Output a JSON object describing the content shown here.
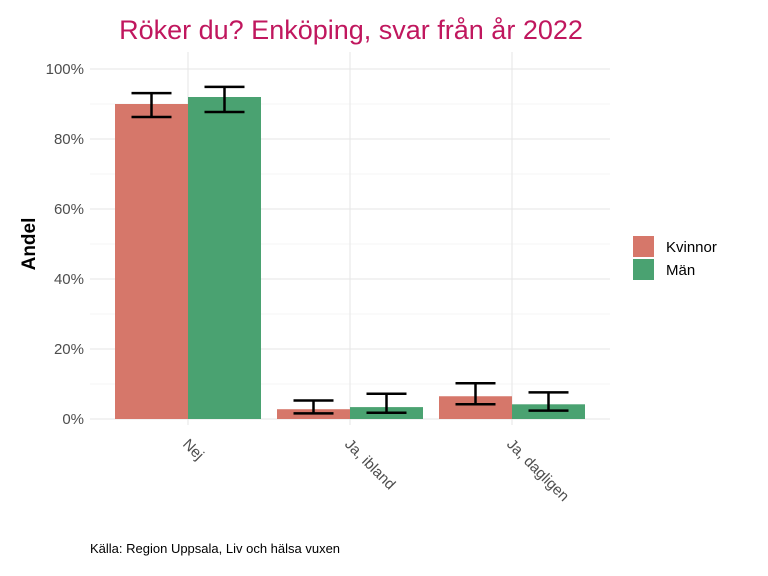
{
  "chart_data": {
    "type": "bar",
    "title": "Röker du? Enköping, svar från år 2022",
    "ylabel": "Andel",
    "xlabel": "",
    "caption": "Källa: Region Uppsala, Liv och hälsa vuxen",
    "categories": [
      "Nej",
      "Ja, ibland",
      "Ja, dagligen"
    ],
    "ylim": [
      0,
      100
    ],
    "yticks": [
      "0%",
      "20%",
      "40%",
      "60%",
      "80%",
      "100%"
    ],
    "grid": true,
    "legend_position": "right",
    "series": [
      {
        "name": "Kvinnor",
        "color": "#D6776A",
        "values": [
          90,
          2.8,
          6.5
        ],
        "err_low": [
          86.3,
          1.6,
          4.2
        ],
        "err_high": [
          93.1,
          5.3,
          10.2
        ]
      },
      {
        "name": "Män",
        "color": "#4AA271",
        "values": [
          92,
          3.4,
          4.2
        ],
        "err_low": [
          87.7,
          1.8,
          2.4
        ],
        "err_high": [
          94.9,
          7.2,
          7.6
        ]
      }
    ],
    "title_color": "#C0175E"
  }
}
